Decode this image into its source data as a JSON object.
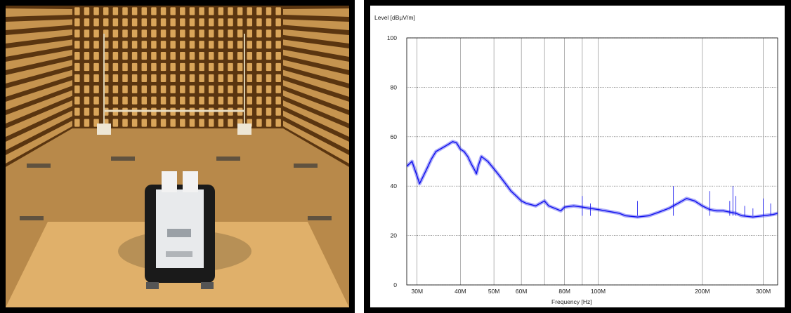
{
  "chart_data": {
    "type": "line",
    "ylabel": "Level [dBµV/m]",
    "xlabel": "Frequency [Hz]",
    "x_scale": "log",
    "xlim": [
      28000000,
      330000000
    ],
    "ylim": [
      0,
      100
    ],
    "y_ticks": [
      0,
      20,
      40,
      60,
      80,
      100
    ],
    "x_ticks": [
      {
        "value": 30000000,
        "label": "30M"
      },
      {
        "value": 40000000,
        "label": "40M"
      },
      {
        "value": 50000000,
        "label": "50M"
      },
      {
        "value": 60000000,
        "label": "60M"
      },
      {
        "value": 80000000,
        "label": "80M"
      },
      {
        "value": 100000000,
        "label": "100M"
      },
      {
        "value": 200000000,
        "label": "200M"
      },
      {
        "value": 300000000,
        "label": "300M"
      }
    ],
    "x_minor_gridlines": [
      70000000,
      90000000
    ],
    "grid": true,
    "series_color": "#1010ee",
    "series": [
      {
        "name": "",
        "x": [
          28000000,
          29000000,
          30000000,
          30500000,
          31000000,
          32000000,
          33000000,
          34000000,
          35000000,
          36000000,
          37000000,
          38000000,
          39000000,
          40000000,
          41000000,
          42000000,
          43000000,
          44000000,
          44500000,
          45000000,
          46000000,
          47000000,
          48000000,
          50000000,
          52000000,
          54000000,
          56000000,
          58000000,
          60000000,
          62000000,
          64000000,
          66000000,
          68000000,
          70000000,
          72000000,
          75000000,
          78000000,
          80000000,
          85000000,
          90000000,
          95000000,
          100000000,
          105000000,
          110000000,
          115000000,
          120000000,
          130000000,
          140000000,
          150000000,
          160000000,
          170000000,
          180000000,
          190000000,
          200000000,
          210000000,
          220000000,
          230000000,
          240000000,
          250000000,
          260000000,
          280000000,
          300000000,
          320000000,
          330000000
        ],
        "y": [
          48,
          50,
          44,
          41,
          43,
          47,
          51,
          54,
          55,
          56,
          57,
          58,
          57.5,
          55,
          54,
          52,
          49,
          46.5,
          45,
          48,
          52,
          51,
          50,
          47,
          44,
          41,
          38,
          36,
          34,
          33,
          32.5,
          32,
          33,
          34,
          32,
          31,
          30,
          31.5,
          32,
          31.5,
          31,
          30.5,
          30,
          29.5,
          29,
          28,
          27.5,
          28,
          29.5,
          31,
          33,
          35,
          34,
          32,
          30.5,
          30,
          30,
          29.5,
          29,
          28,
          27.5,
          28,
          28.5,
          29
        ]
      }
    ],
    "spikes": [
      {
        "x": 90000000,
        "y": 36
      },
      {
        "x": 95000000,
        "y": 33
      },
      {
        "x": 130000000,
        "y": 34
      },
      {
        "x": 165000000,
        "y": 40
      },
      {
        "x": 210000000,
        "y": 38
      },
      {
        "x": 240000000,
        "y": 34
      },
      {
        "x": 245000000,
        "y": 40
      },
      {
        "x": 250000000,
        "y": 36
      },
      {
        "x": 265000000,
        "y": 32
      },
      {
        "x": 280000000,
        "y": 31
      },
      {
        "x": 300000000,
        "y": 35
      },
      {
        "x": 315000000,
        "y": 33
      }
    ]
  },
  "photo": {
    "colors": {
      "wall": "#8a5a1c",
      "cone_light": "#d9a55a",
      "cone_dark": "#5a3510",
      "floor": "#b8894a",
      "floor_tile": "#c99a5a",
      "table": "#e0b06a",
      "device_body": "#1a1a1a",
      "device_face": "#e8eaec"
    }
  }
}
